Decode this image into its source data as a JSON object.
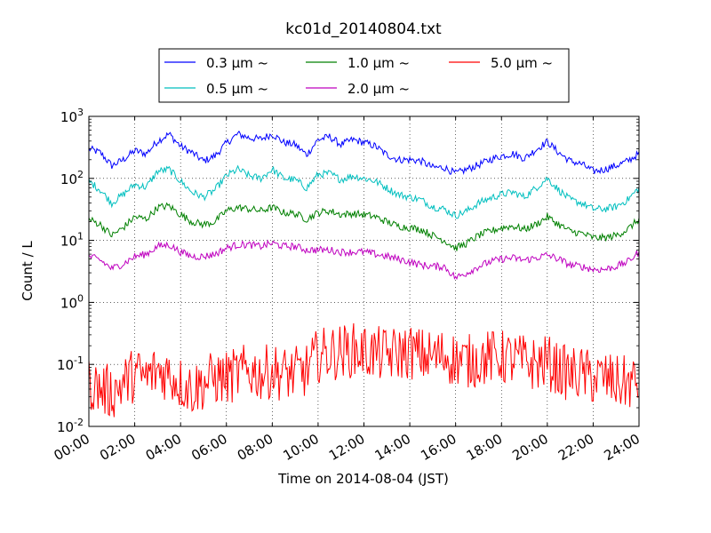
{
  "chart_data": {
    "type": "line",
    "title": "kc01d_20140804.txt",
    "xlabel": "Time on 2014-08-04 (JST)",
    "ylabel": "Count / L",
    "x_unit": "hours",
    "xlim": [
      0,
      24
    ],
    "ylim": [
      0.01,
      1000
    ],
    "yscale": "log",
    "grid": true,
    "legend_position": "top-center, above plot",
    "x_tick_labels": [
      "00:00",
      "02:00",
      "04:00",
      "06:00",
      "08:00",
      "10:00",
      "12:00",
      "14:00",
      "16:00",
      "18:00",
      "20:00",
      "22:00",
      "24:00"
    ],
    "y_tick_labels": [
      {
        "base": "10",
        "exp": "-2"
      },
      {
        "base": "10",
        "exp": "-1"
      },
      {
        "base": "10",
        "exp": "0"
      },
      {
        "base": "10",
        "exp": "1"
      },
      {
        "base": "10",
        "exp": "2"
      },
      {
        "base": "10",
        "exp": "3"
      }
    ],
    "series": [
      {
        "name": "0.3 μm ~",
        "color": "#0000ff",
        "x": [
          0,
          0.5,
          1,
          1.5,
          2,
          2.5,
          3,
          3.5,
          4,
          4.5,
          5,
          5.5,
          6,
          6.5,
          7,
          7.5,
          8,
          8.5,
          9,
          9.5,
          10,
          10.5,
          11,
          11.5,
          12,
          12.5,
          13,
          13.5,
          14,
          14.5,
          15,
          15.5,
          16,
          16.5,
          17,
          17.5,
          18,
          18.5,
          19,
          19.5,
          20,
          20.5,
          21,
          21.5,
          22,
          22.5,
          23,
          23.5,
          24
        ],
        "values": [
          300,
          260,
          160,
          200,
          280,
          250,
          400,
          520,
          330,
          260,
          190,
          230,
          370,
          520,
          450,
          430,
          520,
          380,
          350,
          240,
          420,
          470,
          350,
          420,
          380,
          330,
          240,
          200,
          200,
          190,
          150,
          150,
          120,
          140,
          165,
          200,
          230,
          250,
          210,
          290,
          390,
          260,
          190,
          170,
          130,
          140,
          160,
          190,
          250
        ]
      },
      {
        "name": "0.5 μm ~",
        "color": "#00bfbf",
        "x": [
          0,
          0.5,
          1,
          1.5,
          2,
          2.5,
          3,
          3.5,
          4,
          4.5,
          5,
          5.5,
          6,
          6.5,
          7,
          7.5,
          8,
          8.5,
          9,
          9.5,
          10,
          10.5,
          11,
          11.5,
          12,
          12.5,
          13,
          13.5,
          14,
          14.5,
          15,
          15.5,
          16,
          16.5,
          17,
          17.5,
          18,
          18.5,
          19,
          19.5,
          20,
          20.5,
          21,
          21.5,
          22,
          22.5,
          23,
          23.5,
          24
        ],
        "values": [
          90,
          65,
          40,
          55,
          80,
          72,
          130,
          140,
          90,
          60,
          50,
          65,
          110,
          140,
          110,
          100,
          140,
          100,
          95,
          70,
          115,
          120,
          95,
          110,
          100,
          90,
          70,
          55,
          50,
          45,
          35,
          32,
          25,
          30,
          40,
          48,
          55,
          60,
          50,
          70,
          100,
          65,
          45,
          40,
          32,
          32,
          35,
          45,
          70
        ]
      },
      {
        "name": "1.0 μm ~",
        "color": "#008000",
        "x": [
          0,
          0.5,
          1,
          1.5,
          2,
          2.5,
          3,
          3.5,
          4,
          4.5,
          5,
          5.5,
          6,
          6.5,
          7,
          7.5,
          8,
          8.5,
          9,
          9.5,
          10,
          10.5,
          11,
          11.5,
          12,
          12.5,
          13,
          13.5,
          14,
          14.5,
          15,
          15.5,
          16,
          16.5,
          17,
          17.5,
          18,
          18.5,
          19,
          19.5,
          20,
          20.5,
          21,
          21.5,
          22,
          22.5,
          23,
          23.5,
          24
        ],
        "values": [
          22,
          18,
          12,
          16,
          24,
          22,
          34,
          36,
          26,
          20,
          18,
          20,
          30,
          34,
          32,
          30,
          34,
          28,
          27,
          22,
          28,
          30,
          26,
          27,
          26,
          24,
          20,
          17,
          16,
          15,
          12,
          10,
          7.5,
          9,
          12,
          14,
          16,
          17,
          15,
          18,
          24,
          18,
          14,
          13,
          11,
          11,
          12,
          15,
          22
        ]
      },
      {
        "name": "2.0 μm ~",
        "color": "#bf00bf",
        "x": [
          0,
          0.5,
          1,
          1.5,
          2,
          2.5,
          3,
          3.5,
          4,
          4.5,
          5,
          5.5,
          6,
          6.5,
          7,
          7.5,
          8,
          8.5,
          9,
          9.5,
          10,
          10.5,
          11,
          11.5,
          12,
          12.5,
          13,
          13.5,
          14,
          14.5,
          15,
          15.5,
          16,
          16.5,
          17,
          17.5,
          18,
          18.5,
          19,
          19.5,
          20,
          20.5,
          21,
          21.5,
          22,
          22.5,
          23,
          23.5,
          24
        ],
        "values": [
          5.5,
          4.8,
          3.5,
          4.2,
          5.5,
          6,
          8,
          8.5,
          6.5,
          5.5,
          5.5,
          6,
          7.5,
          8.5,
          8.5,
          8,
          9,
          8,
          8,
          7,
          7,
          7,
          6.5,
          6.5,
          6.5,
          6,
          5.5,
          5,
          4.5,
          4,
          3.8,
          3.8,
          2.5,
          3,
          3.8,
          4.5,
          5,
          5.2,
          4.8,
          5.2,
          5.8,
          5,
          4,
          3.8,
          3.4,
          3.4,
          3.8,
          4.5,
          6.5
        ]
      },
      {
        "name": "5.0 μm ~",
        "color": "#ff0000",
        "x": [
          0,
          0.5,
          1,
          1.5,
          2,
          2.5,
          3,
          3.5,
          4,
          4.5,
          5,
          5.5,
          6,
          6.5,
          7,
          7.5,
          8,
          8.5,
          9,
          9.5,
          10,
          10.5,
          11,
          11.5,
          12,
          12.5,
          13,
          13.5,
          14,
          14.5,
          15,
          15.5,
          16,
          16.5,
          17,
          17.5,
          18,
          18.5,
          19,
          19.5,
          20,
          20.5,
          21,
          21.5,
          22,
          22.5,
          23,
          23.5,
          24
        ],
        "values": [
          0.05,
          0.04,
          0.035,
          0.05,
          0.07,
          0.06,
          0.08,
          0.07,
          0.05,
          0.04,
          0.05,
          0.06,
          0.06,
          0.07,
          0.08,
          0.07,
          0.08,
          0.07,
          0.07,
          0.08,
          0.14,
          0.15,
          0.16,
          0.17,
          0.16,
          0.15,
          0.14,
          0.15,
          0.16,
          0.14,
          0.13,
          0.14,
          0.12,
          0.11,
          0.12,
          0.13,
          0.13,
          0.12,
          0.11,
          0.1,
          0.11,
          0.08,
          0.07,
          0.07,
          0.06,
          0.06,
          0.05,
          0.05,
          0.05
        ]
      }
    ]
  }
}
